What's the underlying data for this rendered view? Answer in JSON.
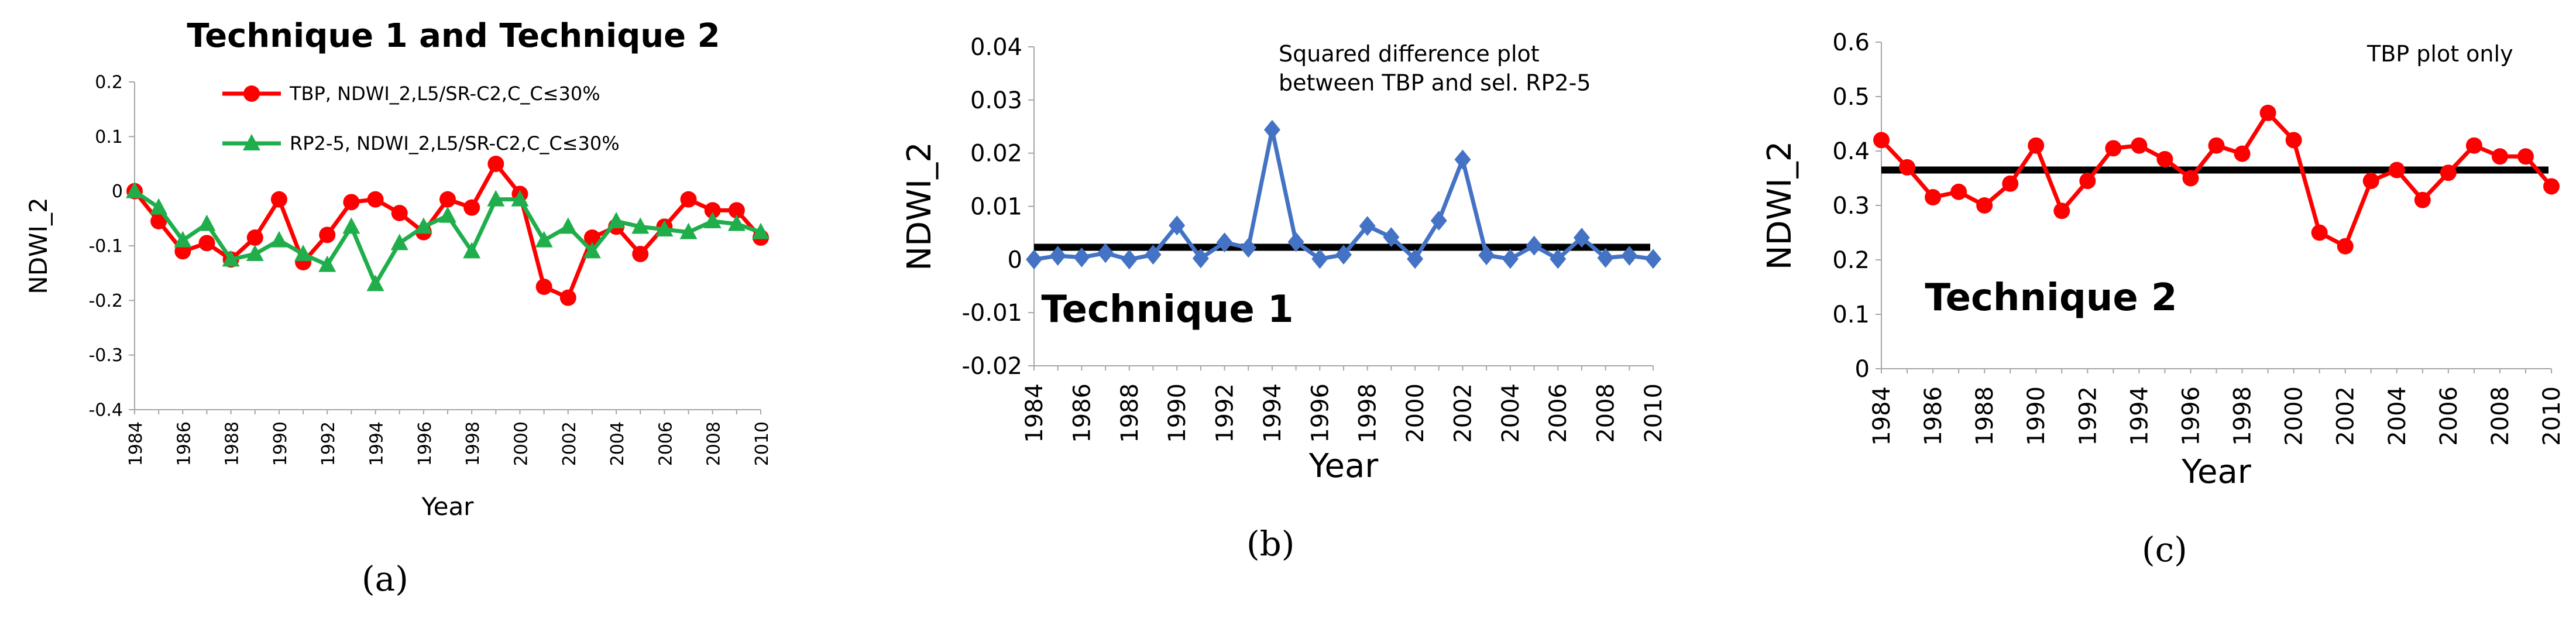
{
  "figure_labels": [
    "(a)",
    "(b)",
    "(c)"
  ],
  "chart_data": [
    {
      "type": "line",
      "panel": "a",
      "title": "Technique 1 and Technique 2",
      "xlabel": "Year",
      "ylabel": "NDWI_2",
      "ylim": [
        -0.4,
        0.2
      ],
      "yticks": [
        0.2,
        0.1,
        0,
        -0.1,
        -0.2,
        -0.3,
        -0.4
      ],
      "ytick_labels": [
        "0.2",
        "0.1",
        "0",
        "-0.1",
        "-0.2",
        "-0.3",
        "-0.4"
      ],
      "xlim": [
        1984,
        2010
      ],
      "xticks": [
        1984,
        1986,
        1988,
        1990,
        1992,
        1994,
        1996,
        1998,
        2000,
        2002,
        2004,
        2006,
        2008,
        2010
      ],
      "xtick_labels": [
        "1984",
        "1986",
        "1988",
        "1990",
        "1992",
        "1994",
        "1996",
        "1998",
        "2000",
        "2002",
        "2004",
        "2006",
        "2008",
        "2010"
      ],
      "legend_position": "top",
      "x": [
        1984,
        1985,
        1986,
        1987,
        1988,
        1989,
        1990,
        1991,
        1992,
        1993,
        1994,
        1995,
        1996,
        1997,
        1998,
        1999,
        2000,
        2001,
        2002,
        2003,
        2004,
        2005,
        2006,
        2007,
        2008,
        2009,
        2010
      ],
      "series": [
        {
          "name": "TBP, NDWI_2,L5/SR-C2,C_C≤30%",
          "color": "#ff0000",
          "marker": "circle",
          "values": [
            0.0,
            -0.055,
            -0.11,
            -0.095,
            -0.125,
            -0.085,
            -0.015,
            -0.13,
            -0.08,
            -0.02,
            -0.015,
            -0.04,
            -0.075,
            -0.015,
            -0.03,
            0.05,
            -0.005,
            -0.175,
            -0.195,
            -0.085,
            -0.065,
            -0.115,
            -0.065,
            -0.015,
            -0.035,
            -0.035,
            -0.085
          ]
        },
        {
          "name": "RP2-5, NDWI_2,L5/SR-C2,C_C≤30%",
          "color": "#1fae4b",
          "marker": "triangle",
          "values": [
            0.0,
            -0.03,
            -0.09,
            -0.06,
            -0.125,
            -0.115,
            -0.09,
            -0.115,
            -0.135,
            -0.065,
            -0.17,
            -0.095,
            -0.065,
            -0.045,
            -0.11,
            -0.015,
            -0.015,
            -0.09,
            -0.065,
            -0.11,
            -0.055,
            -0.065,
            -0.07,
            -0.075,
            -0.055,
            -0.06,
            -0.075
          ]
        }
      ]
    },
    {
      "type": "line",
      "panel": "b",
      "title": "Technique 1",
      "annotation": [
        "Squared difference plot",
        "between TBP and sel. RP2-5"
      ],
      "xlabel": "Year",
      "ylabel": "NDWI_2",
      "ylim": [
        -0.02,
        0.04
      ],
      "yticks": [
        0.04,
        0.03,
        0.02,
        0.01,
        0,
        -0.01,
        -0.02
      ],
      "ytick_labels": [
        "0.04",
        "0.03",
        "0.02",
        "0.01",
        "0",
        "-0.01",
        "-0.02"
      ],
      "xlim": [
        1984,
        2010
      ],
      "xticks": [
        1984,
        1986,
        1988,
        1990,
        1992,
        1994,
        1996,
        1998,
        2000,
        2002,
        2004,
        2006,
        2008,
        2010
      ],
      "xtick_labels": [
        "1984",
        "1986",
        "1988",
        "1990",
        "1992",
        "1994",
        "1996",
        "1998",
        "2000",
        "2002",
        "2004",
        "2006",
        "2008",
        "2010"
      ],
      "reference_line": 0.0023,
      "reference_color": "#000000",
      "x": [
        1984,
        1985,
        1986,
        1987,
        1988,
        1989,
        1990,
        1991,
        1992,
        1993,
        1994,
        1995,
        1996,
        1997,
        1998,
        1999,
        2000,
        2001,
        2002,
        2003,
        2004,
        2005,
        2006,
        2007,
        2008,
        2009,
        2010
      ],
      "series": [
        {
          "name": "Squared difference",
          "color": "#4472c4",
          "marker": "diamond",
          "values": [
            0.0,
            0.0007,
            0.0004,
            0.0012,
            0.0,
            0.0009,
            0.0064,
            0.0002,
            0.0032,
            0.0022,
            0.0244,
            0.0033,
            0.0001,
            0.0009,
            0.0063,
            0.0042,
            0.0001,
            0.0073,
            0.0188,
            0.0008,
            0.0001,
            0.0026,
            0.0001,
            0.0041,
            0.0003,
            0.0007,
            0.0001
          ]
        }
      ]
    },
    {
      "type": "line",
      "panel": "c",
      "title": "Technique 2",
      "annotation": [
        "TBP plot only"
      ],
      "xlabel": "Year",
      "ylabel": "NDWI_2",
      "ylim": [
        0,
        0.6
      ],
      "yticks": [
        0.6,
        0.5,
        0.4,
        0.3,
        0.2,
        0.1,
        0
      ],
      "ytick_labels": [
        "0.6",
        "0.5",
        "0.4",
        "0.3",
        "0.2",
        "0.1",
        "0"
      ],
      "xlim": [
        1984,
        2010
      ],
      "xticks": [
        1984,
        1986,
        1988,
        1990,
        1992,
        1994,
        1996,
        1998,
        2000,
        2002,
        2004,
        2006,
        2008,
        2010
      ],
      "xtick_labels": [
        "1984",
        "1986",
        "1988",
        "1990",
        "1992",
        "1994",
        "1996",
        "1998",
        "2000",
        "2002",
        "2004",
        "2006",
        "2008",
        "2010"
      ],
      "reference_line": 0.365,
      "reference_color": "#000000",
      "x": [
        1984,
        1985,
        1986,
        1987,
        1988,
        1989,
        1990,
        1991,
        1992,
        1993,
        1994,
        1995,
        1996,
        1997,
        1998,
        1999,
        2000,
        2001,
        2002,
        2003,
        2004,
        2005,
        2006,
        2007,
        2008,
        2009,
        2010
      ],
      "series": [
        {
          "name": "TBP",
          "color": "#ff0000",
          "marker": "circle",
          "values": [
            0.42,
            0.37,
            0.315,
            0.325,
            0.3,
            0.34,
            0.41,
            0.29,
            0.345,
            0.405,
            0.41,
            0.385,
            0.35,
            0.41,
            0.395,
            0.47,
            0.42,
            0.25,
            0.225,
            0.345,
            0.365,
            0.31,
            0.36,
            0.41,
            0.39,
            0.39,
            0.335
          ]
        }
      ]
    }
  ]
}
